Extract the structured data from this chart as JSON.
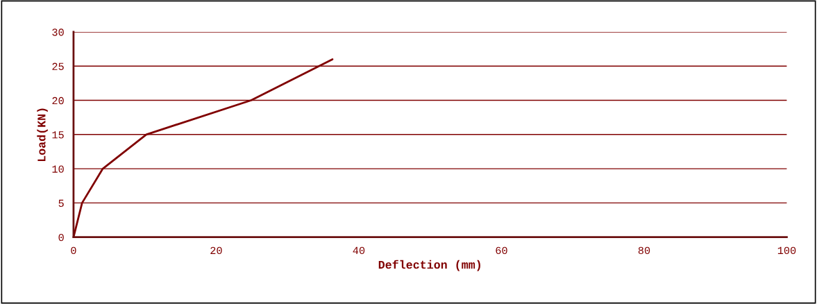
{
  "chart_data": {
    "type": "line",
    "xlabel": "Deflection (mm)",
    "ylabel": "Load(KN)",
    "x": [
      0,
      1.2,
      4.1,
      10.2,
      24.9,
      36.3
    ],
    "series": [
      {
        "color": "#800000",
        "values": [
          0,
          5,
          10,
          15,
          20,
          26
        ]
      }
    ],
    "xlim": [
      0,
      100
    ],
    "xticks": [
      0,
      20,
      40,
      60,
      80,
      100
    ],
    "ylim": [
      0,
      30
    ],
    "yticks": [
      0,
      5,
      10,
      15,
      20,
      25,
      30
    ],
    "grid": "y",
    "marker": "none",
    "line_style": "solid"
  }
}
